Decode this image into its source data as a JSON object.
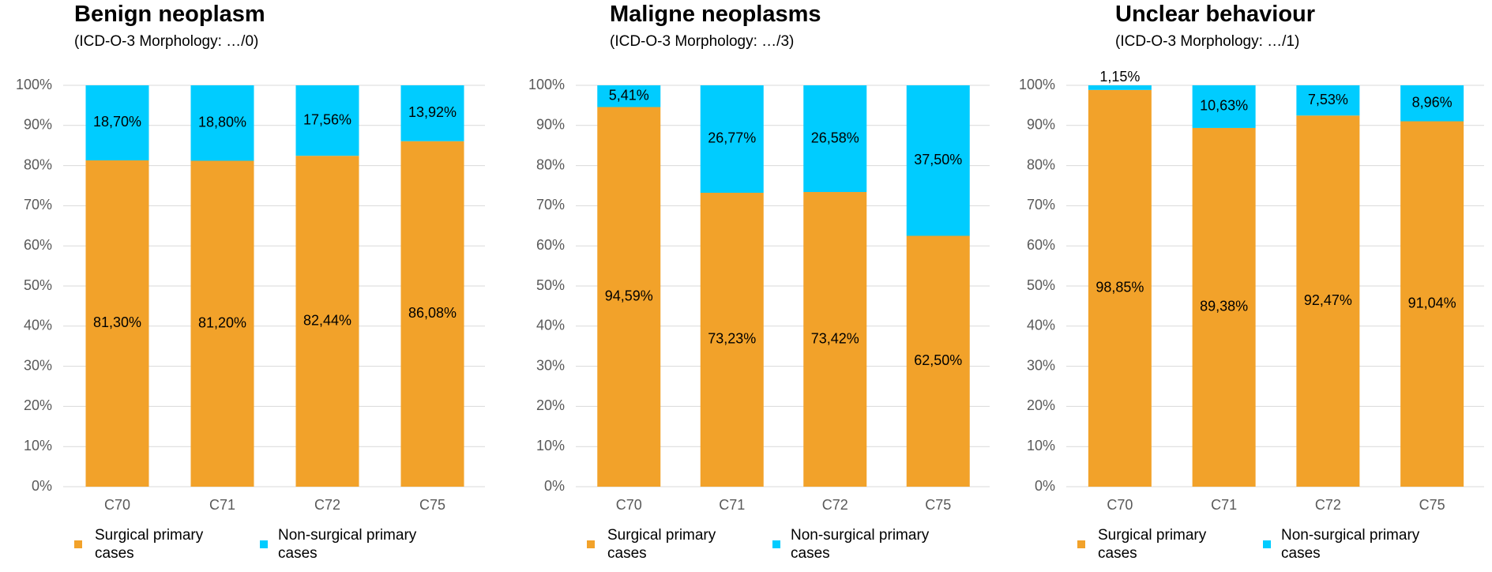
{
  "chart_data": [
    {
      "type": "bar",
      "stacked": true,
      "title": "Benign neoplasm",
      "subtitle": "(ICD-O-3 Morphology: …/0)",
      "categories": [
        "C70",
        "C71",
        "C72",
        "C75"
      ],
      "series": [
        {
          "name": "Surgical primary cases",
          "color": "#f2a22a",
          "values": [
            81.3,
            81.2,
            82.44,
            86.08
          ],
          "value_labels": [
            "81,30%",
            "81,20%",
            "82,44%",
            "86,08%"
          ]
        },
        {
          "name": "Non-surgical primary cases",
          "color": "#00ccff",
          "values": [
            18.7,
            18.8,
            17.56,
            13.92
          ],
          "value_labels": [
            "18,70%",
            "18,80%",
            "17,56%",
            "13,92%"
          ]
        }
      ],
      "ylim": [
        0,
        100
      ],
      "yticks": [
        {
          "value": 0,
          "label": "0%"
        },
        {
          "value": 10,
          "label": "10%"
        },
        {
          "value": 20,
          "label": "20%"
        },
        {
          "value": 30,
          "label": "30%"
        },
        {
          "value": 40,
          "label": "40%"
        },
        {
          "value": 50,
          "label": "50%"
        },
        {
          "value": 60,
          "label": "60%"
        },
        {
          "value": 70,
          "label": "70%"
        },
        {
          "value": 80,
          "label": "80%"
        },
        {
          "value": 90,
          "label": "90%"
        },
        {
          "value": 100,
          "label": "100%"
        }
      ],
      "grid": true
    },
    {
      "type": "bar",
      "stacked": true,
      "title": "Maligne neoplasms",
      "subtitle": "(ICD-O-3 Morphology: …/3)",
      "categories": [
        "C70",
        "C71",
        "C72",
        "C75"
      ],
      "series": [
        {
          "name": "Surgical primary cases",
          "color": "#f2a22a",
          "values": [
            94.59,
            73.23,
            73.42,
            62.5
          ],
          "value_labels": [
            "94,59%",
            "73,23%",
            "73,42%",
            "62,50%"
          ]
        },
        {
          "name": "Non-surgical primary cases",
          "color": "#00ccff",
          "values": [
            5.41,
            26.77,
            26.58,
            37.5
          ],
          "value_labels": [
            "5,41%",
            "26,77%",
            "26,58%",
            "37,50%"
          ]
        }
      ],
      "ylim": [
        0,
        100
      ],
      "yticks": [
        {
          "value": 0,
          "label": "0%"
        },
        {
          "value": 10,
          "label": "10%"
        },
        {
          "value": 20,
          "label": "20%"
        },
        {
          "value": 30,
          "label": "30%"
        },
        {
          "value": 40,
          "label": "40%"
        },
        {
          "value": 50,
          "label": "50%"
        },
        {
          "value": 60,
          "label": "60%"
        },
        {
          "value": 70,
          "label": "70%"
        },
        {
          "value": 80,
          "label": "80%"
        },
        {
          "value": 90,
          "label": "90%"
        },
        {
          "value": 100,
          "label": "100%"
        }
      ],
      "grid": true
    },
    {
      "type": "bar",
      "stacked": true,
      "title": "Unclear behaviour",
      "subtitle": "(ICD-O-3 Morphology: …/1)",
      "categories": [
        "C70",
        "C71",
        "C72",
        "C75"
      ],
      "series": [
        {
          "name": "Surgical primary cases",
          "color": "#f2a22a",
          "values": [
            98.85,
            89.38,
            92.47,
            91.04
          ],
          "value_labels": [
            "98,85%",
            "89,38%",
            "92,47%",
            "91,04%"
          ]
        },
        {
          "name": "Non-surgical primary cases",
          "color": "#00ccff",
          "values": [
            1.15,
            10.63,
            7.53,
            8.96
          ],
          "value_labels": [
            "1,15%",
            "10,63%",
            "7,53%",
            "8,96%"
          ]
        }
      ],
      "ylim": [
        0,
        100
      ],
      "yticks": [
        {
          "value": 0,
          "label": "0%"
        },
        {
          "value": 10,
          "label": "10%"
        },
        {
          "value": 20,
          "label": "20%"
        },
        {
          "value": 30,
          "label": "30%"
        },
        {
          "value": 40,
          "label": "40%"
        },
        {
          "value": 50,
          "label": "50%"
        },
        {
          "value": 60,
          "label": "60%"
        },
        {
          "value": 70,
          "label": "70%"
        },
        {
          "value": 80,
          "label": "80%"
        },
        {
          "value": 90,
          "label": "90%"
        },
        {
          "value": 100,
          "label": "100%"
        }
      ],
      "grid": true
    }
  ]
}
